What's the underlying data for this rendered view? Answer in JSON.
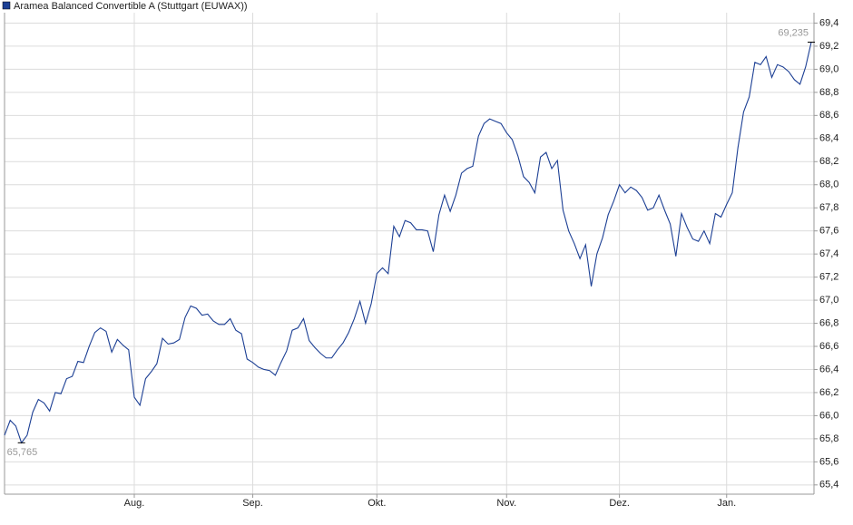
{
  "chart_data": {
    "type": "line",
    "series": [
      {
        "name": "Aramea Balanced Convertible A (Stuttgart (EUWAX))",
        "color": "#1c3f94",
        "values": [
          65.83,
          65.96,
          65.91,
          65.765,
          65.83,
          66.03,
          66.14,
          66.11,
          66.04,
          66.2,
          66.19,
          66.32,
          66.34,
          66.47,
          66.46,
          66.6,
          66.72,
          66.76,
          66.73,
          66.55,
          66.66,
          66.61,
          66.57,
          66.16,
          66.09,
          66.32,
          66.38,
          66.45,
          66.67,
          66.62,
          66.63,
          66.66,
          66.85,
          66.95,
          66.93,
          66.87,
          66.88,
          66.82,
          66.79,
          66.79,
          66.84,
          66.74,
          66.71,
          66.49,
          66.46,
          66.42,
          66.4,
          66.39,
          66.35,
          66.46,
          66.56,
          66.74,
          66.76,
          66.84,
          66.65,
          66.59,
          66.54,
          66.5,
          66.5,
          66.57,
          66.63,
          66.72,
          66.84,
          66.99,
          66.8,
          66.97,
          67.23,
          67.28,
          67.23,
          67.64,
          67.55,
          67.69,
          67.67,
          67.61,
          67.61,
          67.6,
          67.42,
          67.74,
          67.91,
          67.77,
          67.91,
          68.1,
          68.14,
          68.16,
          68.42,
          68.53,
          68.57,
          68.55,
          68.53,
          68.45,
          68.39,
          68.25,
          68.07,
          68.02,
          67.93,
          68.24,
          68.28,
          68.14,
          68.21,
          67.78,
          67.6,
          67.49,
          67.36,
          67.48,
          67.12,
          67.4,
          67.54,
          67.74,
          67.86,
          68.0,
          67.93,
          67.98,
          67.95,
          67.89,
          67.78,
          67.8,
          67.91,
          67.78,
          67.66,
          67.38,
          67.75,
          67.63,
          67.53,
          67.51,
          67.6,
          67.49,
          67.75,
          67.72,
          67.83,
          67.93,
          68.32,
          68.63,
          68.76,
          69.06,
          69.04,
          69.11,
          68.93,
          69.04,
          69.02,
          68.98,
          68.91,
          68.87,
          69.02,
          69.235
        ],
        "value_labels": [
          null,
          null,
          null,
          "65,765",
          null,
          null,
          null,
          null,
          null,
          null,
          null,
          null,
          null,
          null,
          null,
          null,
          null,
          null,
          null,
          null,
          null,
          null,
          null,
          null,
          null,
          null,
          null,
          null,
          null,
          null,
          null,
          null,
          null,
          null,
          null,
          null,
          null,
          null,
          null,
          null,
          null,
          null,
          null,
          null,
          null,
          null,
          null,
          null,
          null,
          null,
          null,
          null,
          null,
          null,
          null,
          null,
          null,
          null,
          null,
          null,
          null,
          null,
          null,
          null,
          null,
          null,
          null,
          null,
          null,
          null,
          null,
          null,
          null,
          null,
          null,
          null,
          null,
          null,
          null,
          null,
          null,
          null,
          null,
          null,
          null,
          null,
          null,
          null,
          null,
          null,
          null,
          null,
          null,
          null,
          null,
          null,
          null,
          null,
          null,
          null,
          null,
          null,
          null,
          null,
          null,
          null,
          null,
          null,
          null,
          null,
          null,
          null,
          null,
          null,
          null,
          null,
          null,
          null,
          null,
          null,
          null,
          null,
          null,
          null,
          null,
          null,
          null,
          null,
          null,
          null,
          null,
          null,
          null,
          null,
          null,
          null,
          null,
          null,
          null,
          null,
          null,
          null,
          null,
          "69,235"
        ]
      }
    ],
    "categories": [
      null,
      null,
      null,
      null,
      null,
      null,
      null,
      null,
      null,
      null,
      null,
      null,
      null,
      null,
      null,
      null,
      null,
      null,
      null,
      null,
      null,
      null,
      null,
      "Aug.",
      null,
      null,
      null,
      null,
      null,
      null,
      null,
      null,
      null,
      null,
      null,
      null,
      null,
      null,
      null,
      null,
      null,
      null,
      null,
      null,
      "Sep.",
      null,
      null,
      null,
      null,
      null,
      null,
      null,
      null,
      null,
      null,
      null,
      null,
      null,
      null,
      null,
      null,
      null,
      null,
      null,
      null,
      null,
      "Okt.",
      null,
      null,
      null,
      null,
      null,
      null,
      null,
      null,
      null,
      null,
      null,
      null,
      null,
      null,
      null,
      null,
      null,
      null,
      null,
      null,
      null,
      null,
      "Nov.",
      null,
      null,
      null,
      null,
      null,
      null,
      null,
      null,
      null,
      null,
      null,
      null,
      null,
      null,
      null,
      null,
      null,
      null,
      null,
      "Dez.",
      null,
      null,
      null,
      null,
      null,
      null,
      null,
      null,
      null,
      null,
      null,
      null,
      null,
      null,
      null,
      null,
      null,
      null,
      "Jan.",
      null,
      null,
      null,
      null,
      null,
      null,
      null,
      null,
      null,
      null,
      null,
      null,
      null,
      null,
      null
    ],
    "ylim": [
      65.32,
      69.49
    ],
    "yticks": [
      {
        "value": 65.4,
        "label": "65,4"
      },
      {
        "value": 65.6,
        "label": "65,6"
      },
      {
        "value": 65.8,
        "label": "65,8"
      },
      {
        "value": 66.0,
        "label": "66,0"
      },
      {
        "value": 66.2,
        "label": "66,2"
      },
      {
        "value": 66.4,
        "label": "66,4"
      },
      {
        "value": 66.6,
        "label": "66,6"
      },
      {
        "value": 66.8,
        "label": "66,8"
      },
      {
        "value": 67.0,
        "label": "67,0"
      },
      {
        "value": 67.2,
        "label": "67,2"
      },
      {
        "value": 67.4,
        "label": "67,4"
      },
      {
        "value": 67.6,
        "label": "67,6"
      },
      {
        "value": 67.8,
        "label": "67,8"
      },
      {
        "value": 68.0,
        "label": "68,0"
      },
      {
        "value": 68.2,
        "label": "68,2"
      },
      {
        "value": 68.4,
        "label": "68,4"
      },
      {
        "value": 68.6,
        "label": "68,6"
      },
      {
        "value": 68.8,
        "label": "68,8"
      },
      {
        "value": 69.0,
        "label": "69,0"
      },
      {
        "value": 69.2,
        "label": "69,2"
      },
      {
        "value": 69.4,
        "label": "69,4"
      }
    ],
    "grid": true
  }
}
